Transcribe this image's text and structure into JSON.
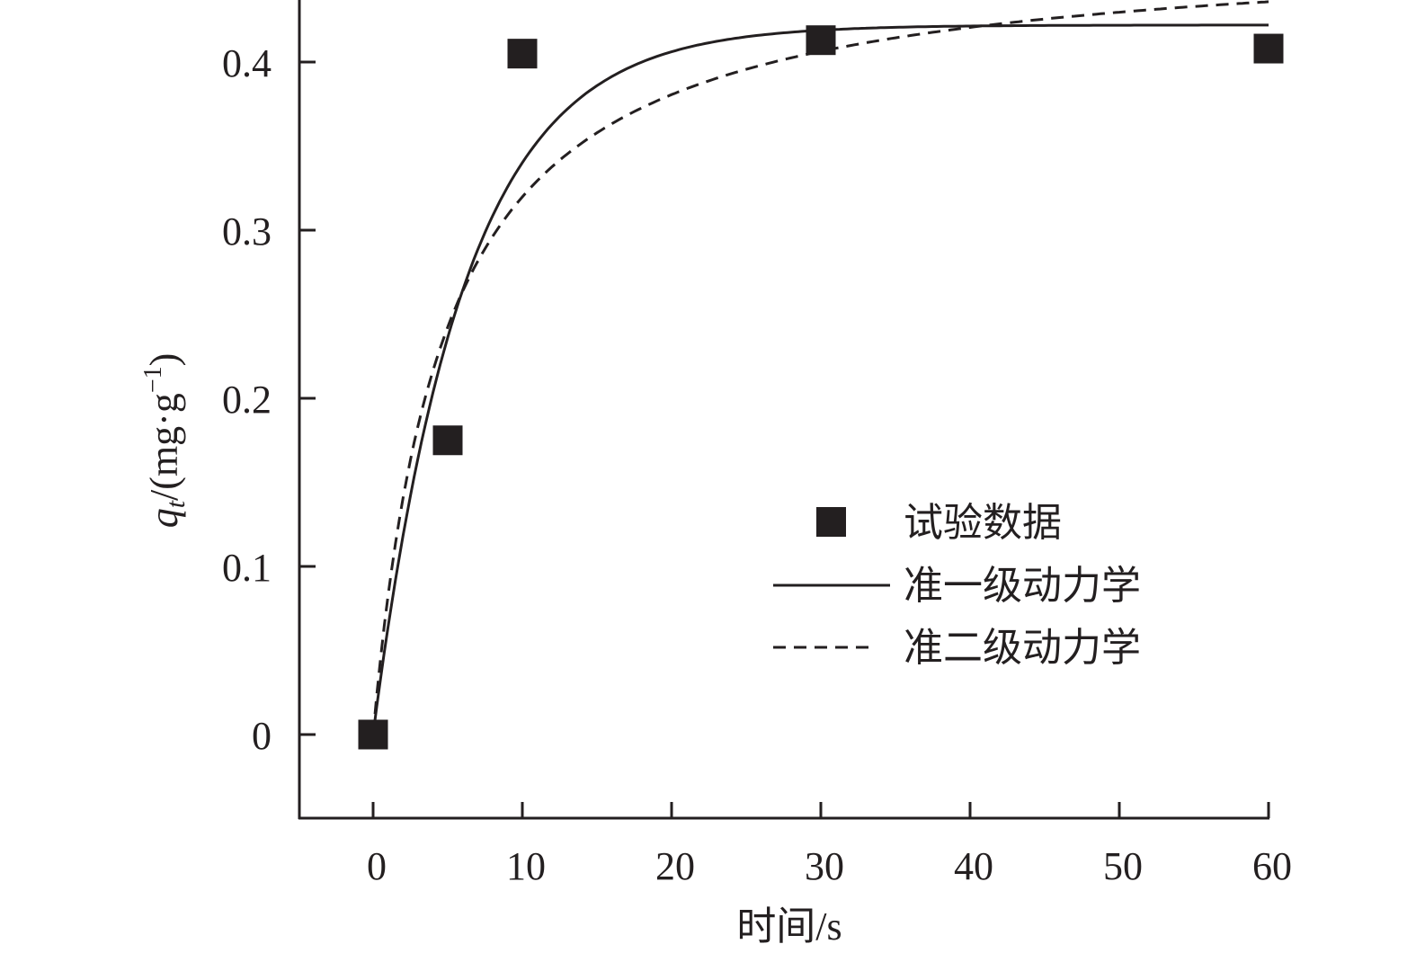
{
  "chart_data": {
    "type": "scatter",
    "title": "",
    "xlabel": "时间/s",
    "ylabel": {
      "main": "q",
      "sub": "t",
      "unit": "/(mg·g",
      "sup": "−1",
      "close": ")"
    },
    "xlim": [
      -5,
      60
    ],
    "ylim": [
      -0.05,
      0.437
    ],
    "xticks": [
      0,
      10,
      20,
      30,
      40,
      50,
      60
    ],
    "xtick_labels": [
      "0",
      "10",
      "20",
      "30",
      "40",
      "50",
      "60"
    ],
    "yticks": [
      0,
      0.1,
      0.2,
      0.3,
      0.4
    ],
    "ytick_labels": [
      "0",
      "0.1",
      "0.2",
      "0.3",
      "0.4"
    ],
    "grid": false,
    "legend_position": "center-right",
    "series": [
      {
        "name": "试验数据",
        "kind": "markers",
        "x": [
          0,
          5,
          10,
          30,
          60
        ],
        "y": [
          0,
          0.175,
          0.405,
          0.413,
          0.408
        ]
      },
      {
        "name": "准一级动力学",
        "kind": "solid-line",
        "model": "pseudo-first-order",
        "qe": 0.422,
        "k": 0.164,
        "x_range": [
          0,
          60
        ]
      },
      {
        "name": "准二级动力学",
        "kind": "dashed-line",
        "model": "pseudo-second-order",
        "qe": 0.47,
        "k": 0.453,
        "x_range": [
          0,
          60
        ]
      }
    ],
    "colors": {
      "ink": "#231f20"
    }
  }
}
